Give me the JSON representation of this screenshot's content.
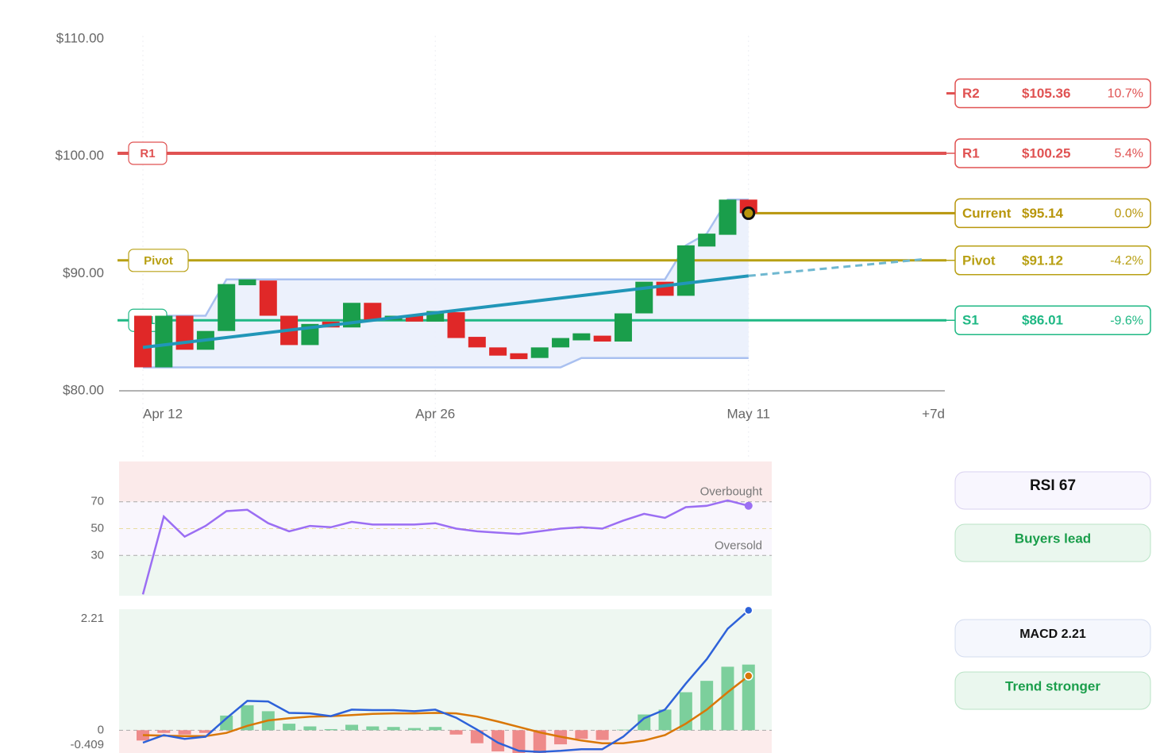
{
  "chart_data": [
    {
      "type": "candlestick",
      "open": [
        86.4,
        82.0,
        86.4,
        83.5,
        85.1,
        89.0,
        89.4,
        86.4,
        83.9,
        85.9,
        85.4,
        87.5,
        86.0,
        86.4,
        85.9,
        86.7,
        84.6,
        83.7,
        83.2,
        82.8,
        83.7,
        84.3,
        84.7,
        84.2,
        86.6,
        89.3,
        88.1,
        92.3,
        93.3,
        96.3
      ],
      "close": [
        82.0,
        86.4,
        83.5,
        85.1,
        89.1,
        89.5,
        86.4,
        83.9,
        85.7,
        85.4,
        87.5,
        86.0,
        86.4,
        85.9,
        86.8,
        84.5,
        83.7,
        83.0,
        82.7,
        83.7,
        84.5,
        84.9,
        84.2,
        86.6,
        89.3,
        88.1,
        92.4,
        93.4,
        96.3,
        95.14
      ],
      "up_color": "#1a9e4b",
      "down_color": "#e02828",
      "channel": {
        "upper": [
          86.4,
          86.4,
          86.4,
          86.4,
          89.5,
          89.5,
          89.5,
          89.5,
          89.5,
          89.5,
          89.5,
          89.5,
          89.5,
          89.5,
          89.5,
          89.5,
          89.5,
          89.5,
          89.5,
          89.5,
          89.5,
          89.5,
          89.5,
          89.5,
          89.5,
          89.5,
          92.4,
          93.4,
          96.3,
          96.3
        ],
        "lower": [
          82.0,
          82.0,
          82.0,
          82.0,
          82.0,
          82.0,
          82.0,
          82.0,
          82.0,
          82.0,
          82.0,
          82.0,
          82.0,
          82.0,
          82.0,
          82.0,
          82.0,
          82.0,
          82.0,
          82.0,
          82.0,
          82.8,
          82.8,
          82.8,
          82.8,
          82.8,
          82.8,
          82.8,
          82.8,
          82.8
        ],
        "color": "#a9c0f0",
        "fill": "#eaf0fc"
      },
      "trend": {
        "x": [
          0,
          29
        ],
        "values": [
          83.7,
          89.8
        ],
        "color": "#2196b8"
      },
      "projection": {
        "x": [
          29,
          37.3
        ],
        "values": [
          89.8,
          91.2
        ],
        "color": "#6fb8d0"
      },
      "current": {
        "x": 29,
        "value": 95.14
      },
      "levels": [
        {
          "name": "R2",
          "value": 105.36,
          "value_label": "$105.36",
          "change": 10.7,
          "change_label": "10.7%",
          "color": "#e05252",
          "line": "stub",
          "tag": false
        },
        {
          "name": "R1",
          "value": 100.25,
          "value_label": "$100.25",
          "change": 5.4,
          "change_label": "5.4%",
          "color": "#e05252",
          "line": "full",
          "tag": true
        },
        {
          "name": "Current",
          "value": 95.14,
          "value_label": "$95.14",
          "change": 0.0,
          "change_label": "0.0%",
          "color": "#b8960c",
          "line": "from_current",
          "tag": false
        },
        {
          "name": "Pivot",
          "value": 91.12,
          "value_label": "$91.12",
          "change": -4.2,
          "change_label": "-4.2%",
          "color": "#b8a014",
          "line": "full",
          "tag": true
        },
        {
          "name": "S1",
          "value": 86.01,
          "value_label": "$86.01",
          "change": -9.6,
          "change_label": "-9.6%",
          "color": "#1fb884",
          "line": "full",
          "tag": true
        }
      ],
      "xlim": [
        -1.14,
        38.4
      ],
      "xticks": [
        {
          "value": 0,
          "label": "Apr 12"
        },
        {
          "value": 14,
          "label": "Apr 26"
        },
        {
          "value": 29,
          "label": "May 11"
        },
        {
          "value": 38.4,
          "label": "+7d"
        }
      ],
      "ylim": [
        80,
        110
      ],
      "yticks": [
        {
          "value": 80,
          "label": "$80.00"
        },
        {
          "value": 90,
          "label": "$90.00"
        },
        {
          "value": 100,
          "label": "$100.00"
        },
        {
          "value": 110,
          "label": "$110.00"
        }
      ]
    },
    {
      "type": "rsi",
      "values": [
        1,
        59,
        44,
        52,
        63,
        64,
        54,
        48,
        52,
        51,
        55,
        53,
        53,
        53,
        54,
        50,
        48,
        47,
        46,
        48,
        50,
        51,
        50,
        56,
        61,
        58,
        66,
        67,
        71,
        67
      ],
      "color": "#9b6ef3",
      "ylim": [
        0,
        100
      ],
      "yticks": [
        30,
        50,
        70
      ],
      "overbought": {
        "value": 70,
        "label": "Overbought"
      },
      "oversold": {
        "value": 30,
        "label": "Oversold"
      },
      "badge": "RSI 67",
      "status": "Buyers lead"
    },
    {
      "type": "macd",
      "macd": {
        "color": "#2e62d9",
        "values": [
          -0.23,
          -0.09,
          -0.16,
          -0.12,
          0.22,
          0.54,
          0.53,
          0.32,
          0.31,
          0.26,
          0.38,
          0.37,
          0.37,
          0.35,
          0.38,
          0.23,
          0.01,
          -0.23,
          -0.38,
          -0.4,
          -0.38,
          -0.35,
          -0.35,
          -0.12,
          0.22,
          0.38,
          0.86,
          1.31,
          1.87,
          2.21
        ]
      },
      "signal": {
        "color": "#d97706",
        "values": [
          -0.09,
          -0.1,
          -0.11,
          -0.11,
          -0.05,
          0.08,
          0.18,
          0.22,
          0.25,
          0.26,
          0.28,
          0.3,
          0.31,
          0.31,
          0.32,
          0.31,
          0.25,
          0.16,
          0.06,
          -0.04,
          -0.12,
          -0.19,
          -0.24,
          -0.24,
          -0.19,
          -0.09,
          0.12,
          0.38,
          0.7,
          1.0
        ]
      },
      "histogram": {
        "up_color": "#7ccf9c",
        "down_color": "#ee8a8a",
        "values": [
          -0.19,
          -0.05,
          -0.08,
          -0.05,
          0.27,
          0.46,
          0.35,
          0.12,
          0.07,
          0.02,
          0.1,
          0.07,
          0.06,
          0.04,
          0.06,
          -0.08,
          -0.24,
          -0.39,
          -0.44,
          -0.42,
          -0.26,
          -0.16,
          -0.18,
          0.01,
          0.29,
          0.38,
          0.7,
          0.91,
          1.17,
          1.21
        ]
      },
      "ylim": [
        -0.42,
        2.23
      ],
      "yticks": [
        -0.409,
        0,
        2.21
      ],
      "badge": "MACD 2.21",
      "status": "Trend stronger"
    }
  ]
}
